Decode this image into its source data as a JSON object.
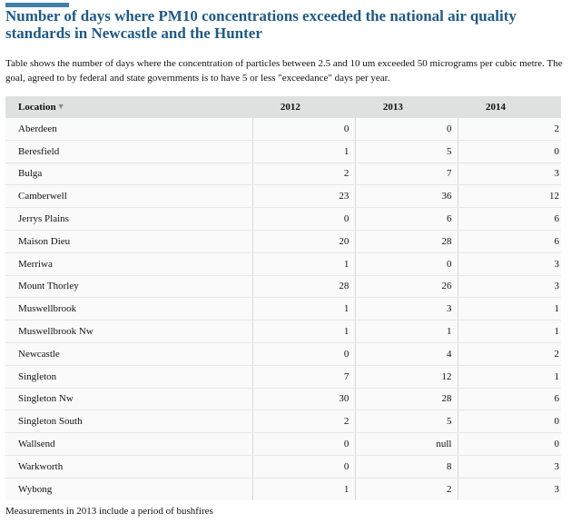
{
  "title": "Number of days where PM10 concentrations exceeded the national air quality standards in Newcastle and the Hunter",
  "description": "Table shows the number of days where the concentration of particles between 2.5 and 10 um exceeded 50 micrograms per cubic metre. The goal, agreed to by federal and state governments is to have 5 or less \"exceedance\" days per year.",
  "table": {
    "headers": [
      "Location",
      "2012",
      "2013",
      "2014"
    ],
    "sort_icon": "sort-descending-icon",
    "rows": [
      [
        "Aberdeen",
        "0",
        "0",
        "2"
      ],
      [
        "Beresfield",
        "1",
        "5",
        "0"
      ],
      [
        "Bulga",
        "2",
        "7",
        "3"
      ],
      [
        "Camberwell",
        "23",
        "36",
        "12"
      ],
      [
        "Jerrys Plains",
        "0",
        "6",
        "6"
      ],
      [
        "Maison Dieu",
        "20",
        "28",
        "6"
      ],
      [
        "Merriwa",
        "1",
        "0",
        "3"
      ],
      [
        "Mount Thorley",
        "28",
        "26",
        "3"
      ],
      [
        "Muswellbrook",
        "1",
        "3",
        "1"
      ],
      [
        "Muswellbrook Nw",
        "1",
        "1",
        "1"
      ],
      [
        "Newcastle",
        "0",
        "4",
        "2"
      ],
      [
        "Singleton",
        "7",
        "12",
        "1"
      ],
      [
        "Singleton Nw",
        "30",
        "28",
        "6"
      ],
      [
        "Singleton South",
        "2",
        "5",
        "0"
      ],
      [
        "Wallsend",
        "0",
        "null",
        "0"
      ],
      [
        "Warkworth",
        "0",
        "8",
        "3"
      ],
      [
        "Wybong",
        "1",
        "2",
        "3"
      ]
    ]
  },
  "footnote": "Measurements in 2013 include a period of bushfires",
  "colors": {
    "title": "#1f5a86",
    "accent": "#3f7fa8",
    "header_bg": "#dfe0e0"
  }
}
